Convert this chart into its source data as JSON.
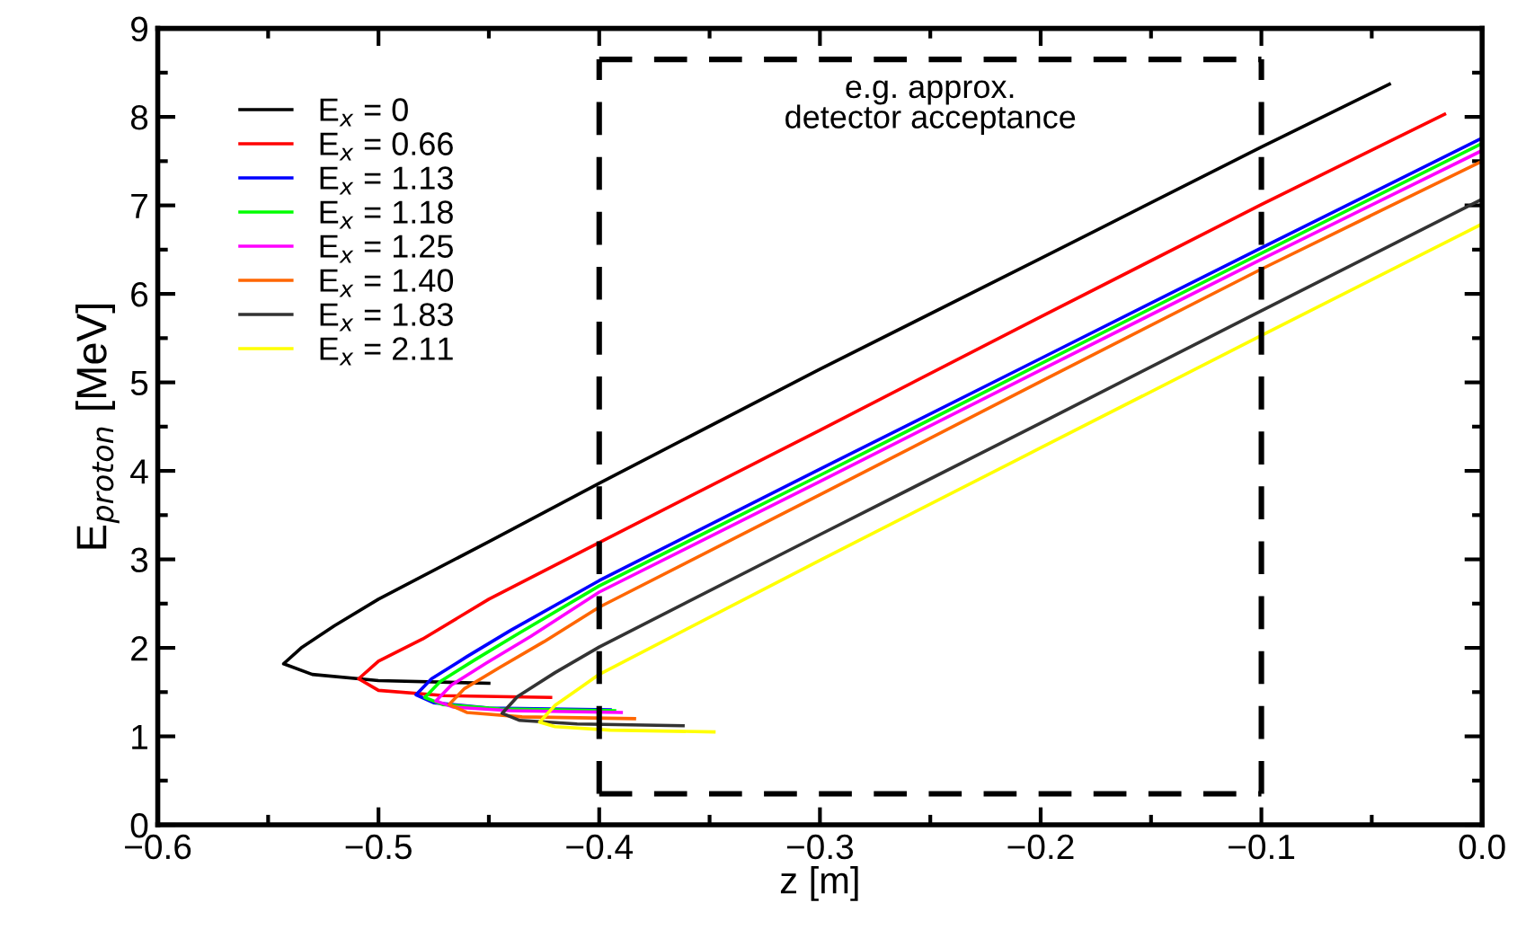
{
  "chart_data": {
    "type": "line",
    "xlabel": "z [m]",
    "ylabel": "E$_{proton}$ [MeV]",
    "xlim": [
      -0.6,
      0.0
    ],
    "ylim": [
      0,
      9
    ],
    "xticks": [
      {
        "value": -0.6,
        "label": "−0.6"
      },
      {
        "value": -0.55,
        "label": null
      },
      {
        "value": -0.5,
        "label": "−0.5"
      },
      {
        "value": -0.45,
        "label": null
      },
      {
        "value": -0.4,
        "label": "−0.4"
      },
      {
        "value": -0.35,
        "label": null
      },
      {
        "value": -0.3,
        "label": "−0.3"
      },
      {
        "value": -0.25,
        "label": null
      },
      {
        "value": -0.2,
        "label": "−0.2"
      },
      {
        "value": -0.15,
        "label": null
      },
      {
        "value": -0.1,
        "label": "−0.1"
      },
      {
        "value": -0.05,
        "label": null
      },
      {
        "value": 0.0,
        "label": "0.0"
      }
    ],
    "yticks": [
      0,
      {
        "value": 0.5,
        "label": null
      },
      1,
      {
        "value": 1.5,
        "label": null
      },
      2,
      {
        "value": 2.5,
        "label": null
      },
      3,
      {
        "value": 3.5,
        "label": null
      },
      4,
      {
        "value": 4.5,
        "label": null
      },
      5,
      {
        "value": 5.5,
        "label": null
      },
      6,
      {
        "value": 6.5,
        "label": null
      },
      7,
      {
        "value": 7.5,
        "label": null
      },
      8,
      {
        "value": 8.5,
        "label": null
      },
      9
    ],
    "grid": false,
    "legend": "top left",
    "line_style": "solid",
    "marker": "none",
    "ref_lines": [
      {
        "axis": "x",
        "value": -0.4,
        "color": "#000000",
        "line_style": "dashed"
      },
      {
        "axis": "x",
        "value": -0.1,
        "color": "#000000",
        "line_style": "dashed"
      },
      {
        "axis": "y",
        "value": 0.35,
        "color": "#000000",
        "line_style": "dashed"
      },
      {
        "axis": "y",
        "value": 8.65,
        "color": "#000000",
        "line_style": "dashed"
      }
    ],
    "annotations": [
      "e.g. approx.\ndetector acceptance"
    ],
    "series": [
      {
        "name": "E$_{x}$ = 0",
        "color": "#000000",
        "x": [
          -0.45,
          -0.5,
          -0.53,
          -0.543,
          -0.535,
          -0.52,
          -0.5,
          -0.45,
          -0.4,
          -0.3,
          -0.2,
          -0.1,
          -0.042
        ],
        "values": [
          1.6,
          1.63,
          1.7,
          1.82,
          2.0,
          2.25,
          2.55,
          3.2,
          3.86,
          5.15,
          6.4,
          7.66,
          8.37
        ]
      },
      {
        "name": "E$_{x}$ = 0.66",
        "color": "#ff0000",
        "x": [
          -0.422,
          -0.47,
          -0.5,
          -0.509,
          -0.5,
          -0.48,
          -0.45,
          -0.4,
          -0.3,
          -0.2,
          -0.1,
          -0.017
        ],
        "values": [
          1.44,
          1.46,
          1.52,
          1.65,
          1.85,
          2.1,
          2.55,
          3.19,
          4.46,
          5.74,
          7.01,
          8.03
        ]
      },
      {
        "name": "E$_{x}$ = 1.13",
        "color": "#0000ff",
        "x": [
          -0.395,
          -0.45,
          -0.475,
          -0.483,
          -0.476,
          -0.46,
          -0.44,
          -0.4,
          -0.3,
          -0.2,
          -0.1,
          0.0
        ],
        "values": [
          1.3,
          1.32,
          1.38,
          1.47,
          1.65,
          1.9,
          2.2,
          2.76,
          4.02,
          5.27,
          6.52,
          7.76
        ]
      },
      {
        "name": "E$_{x}$ = 1.18",
        "color": "#00ff00",
        "x": [
          -0.393,
          -0.445,
          -0.471,
          -0.479,
          -0.472,
          -0.456,
          -0.436,
          -0.4,
          -0.3,
          -0.2,
          -0.1,
          0.0
        ],
        "values": [
          1.29,
          1.31,
          1.36,
          1.44,
          1.62,
          1.87,
          2.17,
          2.7,
          3.95,
          5.21,
          6.46,
          7.7
        ]
      },
      {
        "name": "E$_{x}$ = 1.25",
        "color": "#ff00ff",
        "x": [
          -0.39,
          -0.44,
          -0.466,
          -0.474,
          -0.467,
          -0.451,
          -0.431,
          -0.4,
          -0.3,
          -0.2,
          -0.1,
          0.0
        ],
        "values": [
          1.27,
          1.29,
          1.33,
          1.4,
          1.58,
          1.83,
          2.13,
          2.63,
          3.88,
          5.14,
          6.39,
          7.62
        ]
      },
      {
        "name": "E$_{x}$ = 1.40",
        "color": "#ff6600",
        "x": [
          -0.384,
          -0.435,
          -0.46,
          -0.468,
          -0.461,
          -0.445,
          -0.425,
          -0.4,
          -0.3,
          -0.2,
          -0.1,
          0.0
        ],
        "values": [
          1.2,
          1.22,
          1.27,
          1.36,
          1.54,
          1.78,
          2.07,
          2.46,
          3.73,
          5.01,
          6.28,
          7.5
        ]
      },
      {
        "name": "E$_{x}$ = 1.83",
        "color": "#333333",
        "x": [
          -0.362,
          -0.41,
          -0.436,
          -0.444,
          -0.437,
          -0.42,
          -0.4,
          -0.3,
          -0.2,
          -0.1,
          0.0
        ],
        "values": [
          1.12,
          1.14,
          1.18,
          1.26,
          1.45,
          1.72,
          2.01,
          3.28,
          4.54,
          5.81,
          7.07
        ]
      },
      {
        "name": "E$_{x}$ = 2.11",
        "color": "#ffff00",
        "x": [
          -0.348,
          -0.395,
          -0.42,
          -0.427,
          -0.42,
          -0.4,
          -0.3,
          -0.2,
          -0.1,
          0.0
        ],
        "values": [
          1.05,
          1.07,
          1.11,
          1.16,
          1.35,
          1.7,
          2.99,
          4.26,
          5.53,
          6.79
        ]
      }
    ]
  }
}
